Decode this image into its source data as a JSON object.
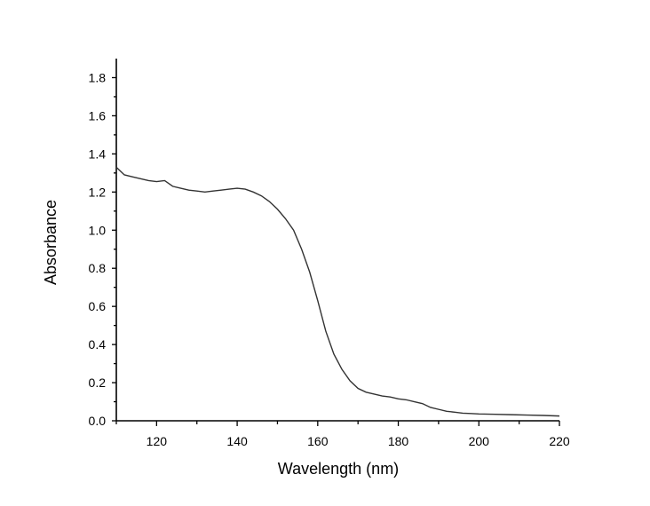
{
  "chart_data": {
    "type": "line",
    "xlabel": "Wavelength (nm)",
    "ylabel": "Absorbance",
    "xlim": [
      110,
      220
    ],
    "ylim": [
      0,
      1.9
    ],
    "x_ticks": [
      120,
      140,
      160,
      180,
      200,
      220
    ],
    "y_ticks": [
      0.0,
      0.2,
      0.4,
      0.6,
      0.8,
      1.0,
      1.2,
      1.4,
      1.6,
      1.8
    ],
    "x_tick_labels": [
      "120",
      "140",
      "160",
      "180",
      "200",
      "220"
    ],
    "y_tick_labels": [
      "0.0",
      "0.2",
      "0.4",
      "0.6",
      "0.8",
      "1.0",
      "1.2",
      "1.4",
      "1.6",
      "1.8"
    ],
    "grid": false,
    "series": [
      {
        "color": "#333333",
        "points": [
          [
            110,
            1.33
          ],
          [
            112,
            1.29
          ],
          [
            114,
            1.28
          ],
          [
            116,
            1.27
          ],
          [
            118,
            1.26
          ],
          [
            120,
            1.255
          ],
          [
            122,
            1.26
          ],
          [
            124,
            1.23
          ],
          [
            126,
            1.22
          ],
          [
            128,
            1.21
          ],
          [
            130,
            1.205
          ],
          [
            132,
            1.2
          ],
          [
            134,
            1.205
          ],
          [
            136,
            1.21
          ],
          [
            138,
            1.215
          ],
          [
            140,
            1.22
          ],
          [
            142,
            1.215
          ],
          [
            144,
            1.2
          ],
          [
            146,
            1.18
          ],
          [
            148,
            1.15
          ],
          [
            150,
            1.11
          ],
          [
            152,
            1.06
          ],
          [
            154,
            1.0
          ],
          [
            156,
            0.9
          ],
          [
            158,
            0.78
          ],
          [
            160,
            0.63
          ],
          [
            162,
            0.47
          ],
          [
            164,
            0.35
          ],
          [
            166,
            0.27
          ],
          [
            168,
            0.21
          ],
          [
            170,
            0.17
          ],
          [
            172,
            0.15
          ],
          [
            174,
            0.14
          ],
          [
            176,
            0.13
          ],
          [
            178,
            0.125
          ],
          [
            180,
            0.115
          ],
          [
            182,
            0.11
          ],
          [
            184,
            0.1
          ],
          [
            186,
            0.09
          ],
          [
            188,
            0.07
          ],
          [
            190,
            0.06
          ],
          [
            192,
            0.05
          ],
          [
            194,
            0.045
          ],
          [
            196,
            0.04
          ],
          [
            198,
            0.038
          ],
          [
            200,
            0.036
          ],
          [
            204,
            0.034
          ],
          [
            208,
            0.032
          ],
          [
            212,
            0.03
          ],
          [
            216,
            0.028
          ],
          [
            220,
            0.025
          ]
        ]
      }
    ]
  }
}
